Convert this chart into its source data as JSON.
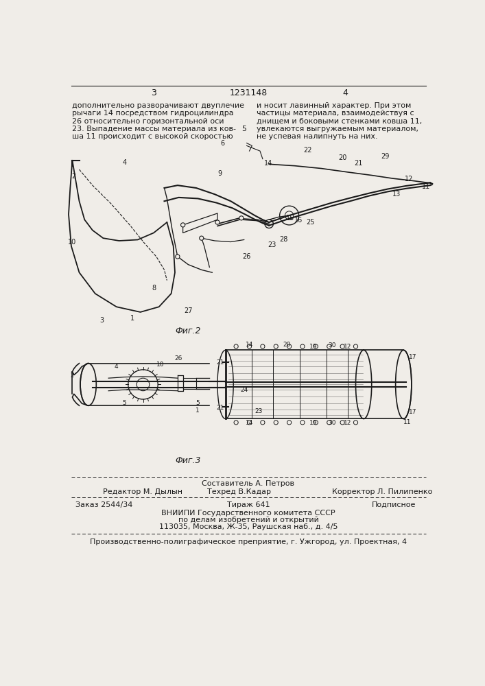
{
  "page_number_left": "3",
  "patent_number": "1231148",
  "page_number_right": "4",
  "text_left": "дополнительно разворачивают двуплечие\nрычаги 14 посредством гидроцилиндра\n26 относительно горизонтальной оси\n23. Выпадение массы материала из ков-\nша 11 происходит с высокой скоростью",
  "text_right": "и носит лавинный характер. При этом\nчастицы материала, взаимодействуя с\nднищем и боковыми стенками ковша 11,\nувлекаются выгружаемым материалом,\nне успевая налипнуть на них.",
  "fig2_label": "Фиг.2",
  "fig3_label": "Фиг.3",
  "staff_line": "Составитель А. Петров",
  "staff_editor": "Редактор М. Дылын",
  "staff_tech": "Техред В.Кадар",
  "staff_corrector": "Корректор Л. Пилипенко",
  "order": "Заказ 2544/34",
  "edition": "Тираж 641",
  "subscription": "Подписное",
  "org_line1": "ВНИИПИ Государственного комитета СССР",
  "org_line2": "по делам изобретений и открытий",
  "org_line3": "113035, Москва, Ж-35, Раушская наб., д. 4/5",
  "printer": "Производственно-полиграфическое преприятие, г. Ужгород, ул. Проектная, 4",
  "bg_color": "#f0ede8",
  "text_color": "#1a1a1a"
}
